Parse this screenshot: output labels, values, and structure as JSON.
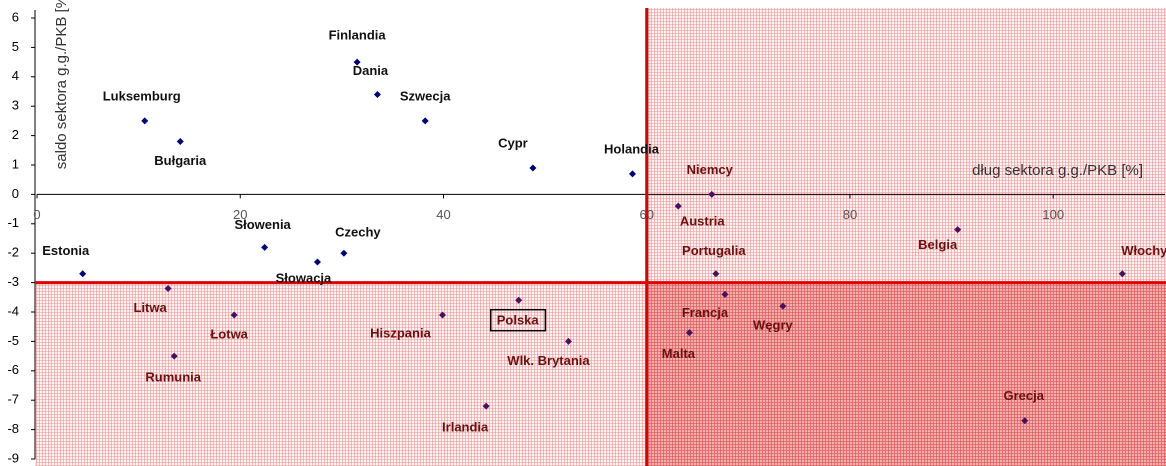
{
  "chart_data": {
    "type": "scatter",
    "x_label": "dług sektora g.g./PKB [%]",
    "y_label": "saldo sektora g.g./PKB [%]",
    "xlim": [
      0,
      111
    ],
    "ylim": [
      -9,
      6
    ],
    "xticks": [
      0,
      20,
      40,
      60,
      80,
      100
    ],
    "yticks": [
      -9,
      -8,
      -7,
      -6,
      -5,
      -4,
      -3,
      -2,
      -1,
      0,
      1,
      2,
      3,
      4,
      5,
      6
    ],
    "reference_lines": {
      "x": 60,
      "y": -3,
      "color": "#e00000"
    },
    "color": "#000080",
    "labels": [
      "Finlandia",
      "Dania",
      "Szwecja",
      "Luksemburg",
      "Bułgaria",
      "Cypr",
      "Holandia",
      "Niemcy",
      "Austria",
      "Belgia",
      "Włochy",
      "Portugalia",
      "Estonia",
      "Słowenia",
      "Czechy",
      "Słowacja",
      "Litwa",
      "Łotwa",
      "Rumunia",
      "Hiszpania",
      "Polska",
      "Wlk. Brytania",
      "Irlandia",
      "Francja",
      "Malta",
      "Węgry",
      "Grecja"
    ],
    "x": [
      31.5,
      33.5,
      38.2,
      10.6,
      14.1,
      48.8,
      58.6,
      66.4,
      63.1,
      90.6,
      106.8,
      66.8,
      4.5,
      22.4,
      30.2,
      27.6,
      12.9,
      19.4,
      13.5,
      39.9,
      47.4,
      52.3,
      44.2,
      67.7,
      64.2,
      73.4,
      97.2
    ],
    "values": [
      4.5,
      3.4,
      2.5,
      2.5,
      1.8,
      0.9,
      0.7,
      0,
      -0.4,
      -1.2,
      -2.7,
      -2.7,
      -2.7,
      -1.8,
      -2.0,
      -2.3,
      -3.2,
      -4.1,
      -5.5,
      -4.1,
      -3.6,
      -5.0,
      -7.2,
      -3.4,
      -4.7,
      -3.8,
      -7.7
    ]
  }
}
